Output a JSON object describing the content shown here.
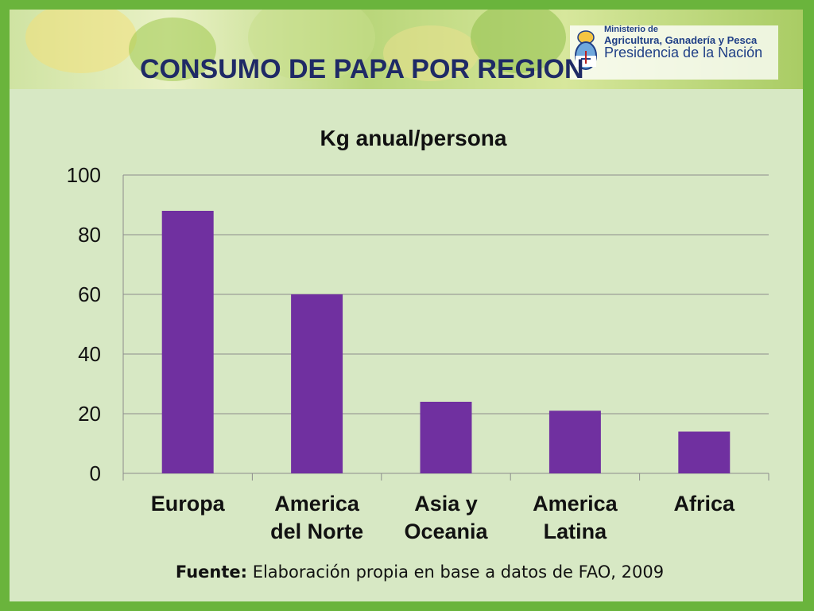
{
  "header": {
    "ministry_line1": "Ministerio de",
    "ministry_line2": "Agricultura, Ganadería y Pesca",
    "ministry_line3": "Presidencia de la Nación",
    "logo_icon": "argentina-coat-of-arms-icon"
  },
  "slide_title": "CONSUMO DE PAPA POR REGION",
  "chart_data": {
    "type": "bar",
    "title": "Kg anual/persona",
    "xlabel": "",
    "ylabel": "",
    "categories": [
      "Europa",
      "America del Norte",
      "Asia y Oceania",
      "America Latina",
      "Africa"
    ],
    "category_lines": [
      [
        "Europa"
      ],
      [
        "America",
        "del Norte"
      ],
      [
        "Asia y",
        "Oceania"
      ],
      [
        "America",
        "Latina"
      ],
      [
        "Africa"
      ]
    ],
    "values": [
      88,
      60,
      24,
      21,
      14
    ],
    "ylim": [
      0,
      100
    ],
    "yticks": [
      0,
      20,
      40,
      60,
      80,
      100
    ],
    "grid": true,
    "legend": "none",
    "bar_color": "#7030a0"
  },
  "source": {
    "label": "Fuente:",
    "text": "Elaboración propia en base a datos de FAO, 2009"
  },
  "colors": {
    "frame": "#6ab43c",
    "background": "#d7e8c4",
    "title": "#1f2a66",
    "gridline": "#8c8c8c"
  }
}
